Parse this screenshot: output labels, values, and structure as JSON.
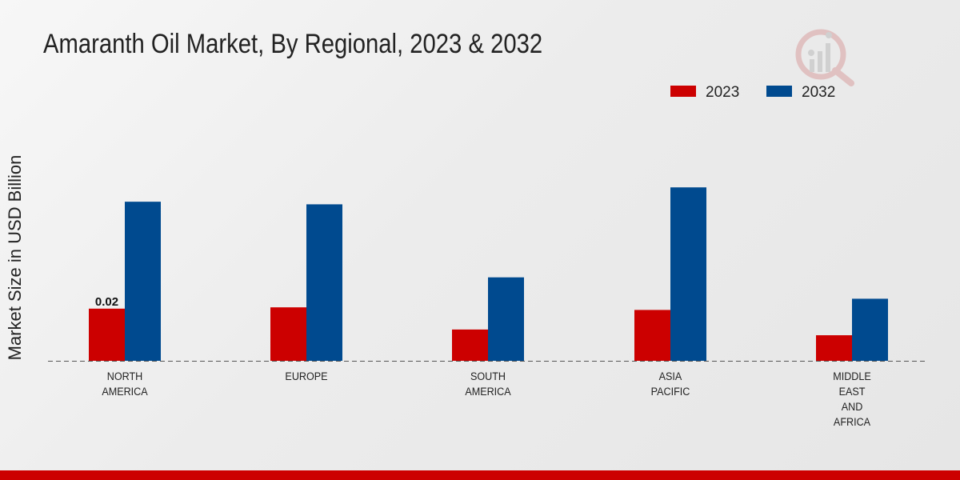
{
  "chart_data": {
    "type": "bar",
    "title": "Amaranth Oil Market, By Regional, 2023 & 2032",
    "xlabel": "",
    "ylabel": "Market Size in USD Billion",
    "categories": [
      [
        "NORTH",
        "AMERICA"
      ],
      [
        "EUROPE"
      ],
      [
        "SOUTH",
        "AMERICA"
      ],
      [
        "ASIA",
        "PACIFIC"
      ],
      [
        "MIDDLE",
        "EAST",
        "AND",
        "AFRICA"
      ]
    ],
    "series": [
      {
        "name": "2023",
        "color": "#cc0000",
        "values": [
          0.02,
          0.0205,
          0.012,
          0.0195,
          0.0098
        ]
      },
      {
        "name": "2032",
        "color": "#004a8f",
        "values": [
          0.061,
          0.06,
          0.032,
          0.0665,
          0.0238
        ]
      }
    ],
    "data_labels": [
      {
        "series": 0,
        "category": 0,
        "text": "0.02"
      }
    ],
    "ylim": [
      0,
      0.1
    ],
    "legend_position": "top-right",
    "grid": false
  }
}
